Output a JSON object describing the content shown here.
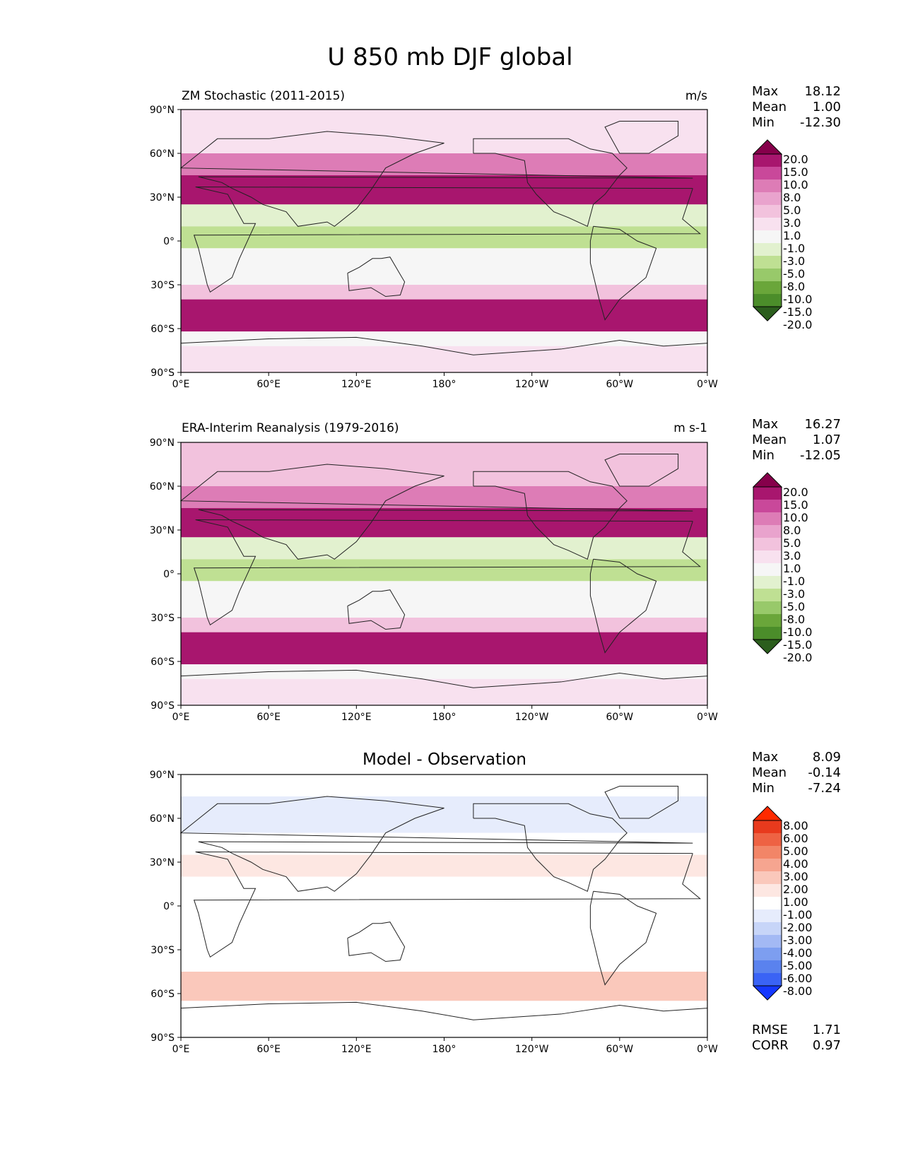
{
  "title": "U 850 mb DJF global",
  "colors": {
    "full_field": [
      "#2b5e1d",
      "#4b8d2a",
      "#6aa63a",
      "#98c96a",
      "#bfe093",
      "#e2f1cf",
      "#f6f6f6",
      "#f8e1ef",
      "#f2c2dd",
      "#e9a3cd",
      "#dd7cb6",
      "#c9489a",
      "#a8166e",
      "#86004b"
    ],
    "difference": [
      "#1538ff",
      "#3a63f5",
      "#5a82ee",
      "#7d9ef0",
      "#a3b9f4",
      "#c7d5f8",
      "#e6ecfc",
      "#ffffff",
      "#fde7e2",
      "#fac8bb",
      "#f6a590",
      "#f28567",
      "#ee6243",
      "#e83a1d",
      "#ff2a00"
    ]
  },
  "chart_data": [
    {
      "type": "heatmap",
      "title": "ZM Stochastic (2011-2015)",
      "units": "m/s",
      "stats": {
        "max_label": "Max",
        "max": "18.12",
        "mean_label": "Mean",
        "mean": "1.00",
        "min_label": "Min",
        "min": "-12.30"
      },
      "xticks": [
        "0°E",
        "60°E",
        "120°E",
        "180°",
        "120°W",
        "60°W",
        "0°W"
      ],
      "yticks": [
        "90°N",
        "60°N",
        "30°N",
        "0°",
        "30°S",
        "60°S",
        "90°S"
      ],
      "xlim": [
        0,
        360
      ],
      "ylim": [
        -90,
        90
      ],
      "colorbar_levels": [
        "20.0",
        "15.0",
        "10.0",
        "8.0",
        "5.0",
        "3.0",
        "1.0",
        "-1.0",
        "-3.0",
        "-5.0",
        "-8.0",
        "-10.0",
        "-15.0",
        "-20.0"
      ],
      "colorbar_extend": "both",
      "zonal_bands": [
        {
          "lat": [
            60,
            90
          ],
          "value": 0
        },
        {
          "lat": [
            45,
            60
          ],
          "value": 6
        },
        {
          "lat": [
            25,
            45
          ],
          "value": 12
        },
        {
          "lat": [
            10,
            25
          ],
          "value": -4
        },
        {
          "lat": [
            -5,
            10
          ],
          "value": -7
        },
        {
          "lat": [
            -30,
            -5
          ],
          "value": -3
        },
        {
          "lat": [
            -40,
            -30
          ],
          "value": 1
        },
        {
          "lat": [
            -62,
            -40
          ],
          "value": 14
        },
        {
          "lat": [
            -72,
            -62
          ],
          "value": -2
        },
        {
          "lat": [
            -90,
            -72
          ],
          "value": 0
        }
      ]
    },
    {
      "type": "heatmap",
      "title": "ERA-Interim Reanalysis (1979-2016)",
      "units": "m s-1",
      "stats": {
        "max_label": "Max",
        "max": "16.27",
        "mean_label": "Mean",
        "mean": "1.07",
        "min_label": "Min",
        "min": "-12.05"
      },
      "xticks": [
        "0°E",
        "60°E",
        "120°E",
        "180°",
        "120°W",
        "60°W",
        "0°W"
      ],
      "yticks": [
        "90°N",
        "60°N",
        "30°N",
        "0°",
        "30°S",
        "60°S",
        "90°S"
      ],
      "xlim": [
        0,
        360
      ],
      "ylim": [
        -90,
        90
      ],
      "colorbar_levels": [
        "20.0",
        "15.0",
        "10.0",
        "8.0",
        "5.0",
        "3.0",
        "1.0",
        "-1.0",
        "-3.0",
        "-5.0",
        "-8.0",
        "-10.0",
        "-15.0",
        "-20.0"
      ],
      "colorbar_extend": "both",
      "zonal_bands": [
        {
          "lat": [
            60,
            90
          ],
          "value": 2
        },
        {
          "lat": [
            45,
            60
          ],
          "value": 7
        },
        {
          "lat": [
            25,
            45
          ],
          "value": 11
        },
        {
          "lat": [
            10,
            25
          ],
          "value": -4
        },
        {
          "lat": [
            -5,
            10
          ],
          "value": -6
        },
        {
          "lat": [
            -30,
            -5
          ],
          "value": -3
        },
        {
          "lat": [
            -40,
            -30
          ],
          "value": 1
        },
        {
          "lat": [
            -62,
            -40
          ],
          "value": 14
        },
        {
          "lat": [
            -72,
            -62
          ],
          "value": -3
        },
        {
          "lat": [
            -90,
            -72
          ],
          "value": 0
        }
      ]
    },
    {
      "type": "heatmap",
      "title": "Model - Observation",
      "units": "",
      "stats": {
        "max_label": "Max",
        "max": "8.09",
        "mean_label": "Mean",
        "mean": "-0.14",
        "min_label": "Min",
        "min": "-7.24"
      },
      "metrics": {
        "rmse_label": "RMSE",
        "rmse": "1.71",
        "corr_label": "CORR",
        "corr": "0.97"
      },
      "xticks": [
        "0°E",
        "60°E",
        "120°E",
        "180°",
        "120°W",
        "60°W",
        "0°W"
      ],
      "yticks": [
        "90°N",
        "60°N",
        "30°N",
        "0°",
        "30°S",
        "60°S",
        "90°S"
      ],
      "xlim": [
        0,
        360
      ],
      "ylim": [
        -90,
        90
      ],
      "colorbar_levels": [
        "8.00",
        "6.00",
        "5.00",
        "4.00",
        "3.00",
        "2.00",
        "1.00",
        "-1.00",
        "-2.00",
        "-3.00",
        "-4.00",
        "-5.00",
        "-6.00",
        "-8.00"
      ],
      "colorbar_extend": "both",
      "zonal_bands": [
        {
          "lat": [
            75,
            90
          ],
          "value": 0
        },
        {
          "lat": [
            50,
            75
          ],
          "value": -2
        },
        {
          "lat": [
            35,
            50
          ],
          "value": 0
        },
        {
          "lat": [
            20,
            35
          ],
          "value": 1
        },
        {
          "lat": [
            -10,
            20
          ],
          "value": -1
        },
        {
          "lat": [
            -35,
            -10
          ],
          "value": 0
        },
        {
          "lat": [
            -45,
            -35
          ],
          "value": 0
        },
        {
          "lat": [
            -65,
            -45
          ],
          "value": 2
        },
        {
          "lat": [
            -90,
            -65
          ],
          "value": 0
        }
      ]
    }
  ]
}
